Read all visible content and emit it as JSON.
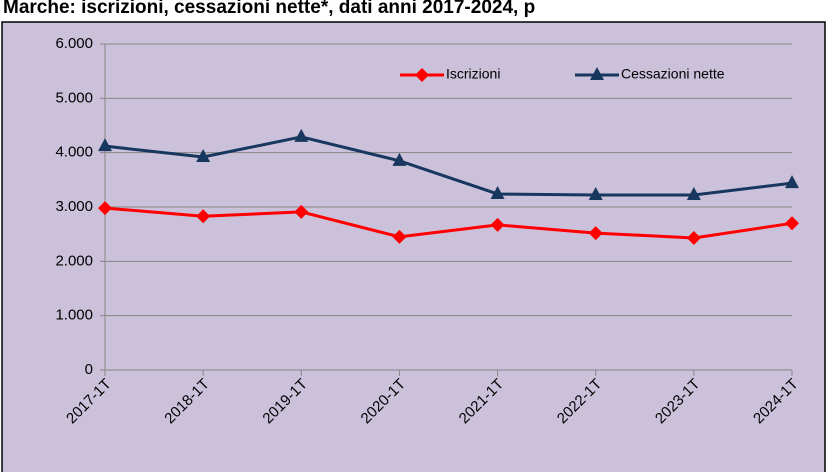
{
  "chart_data": {
    "type": "line",
    "title": "Marche: iscrizioni, cessazioni nette*, dati anni 2017-2024, p",
    "categories": [
      "2017-1T",
      "2018-1T",
      "2019-1T",
      "2020-1T",
      "2021-1T",
      "2022-1T",
      "2023-1T",
      "2024-1T"
    ],
    "series": [
      {
        "name": "Iscrizioni",
        "color": "#ff0000",
        "marker": "diamond",
        "values": [
          2980,
          2830,
          2910,
          2450,
          2670,
          2520,
          2430,
          2700
        ]
      },
      {
        "name": "Cessazioni nette",
        "color": "#17375e",
        "marker": "triangle",
        "values": [
          4120,
          3920,
          4290,
          3850,
          3240,
          3220,
          3220,
          3440
        ]
      }
    ],
    "ylim": [
      0,
      6000
    ],
    "yticks": [
      0,
      {
        "value": 1000,
        "label": "1.000"
      },
      {
        "value": 2000,
        "label": "2.000"
      },
      {
        "value": 3000,
        "label": "3.000"
      },
      {
        "value": 4000,
        "label": "4.000"
      },
      {
        "value": 5000,
        "label": "5.000"
      },
      {
        "value": 6000,
        "label": "6.000"
      }
    ],
    "grid": true,
    "legend": "top-right"
  }
}
